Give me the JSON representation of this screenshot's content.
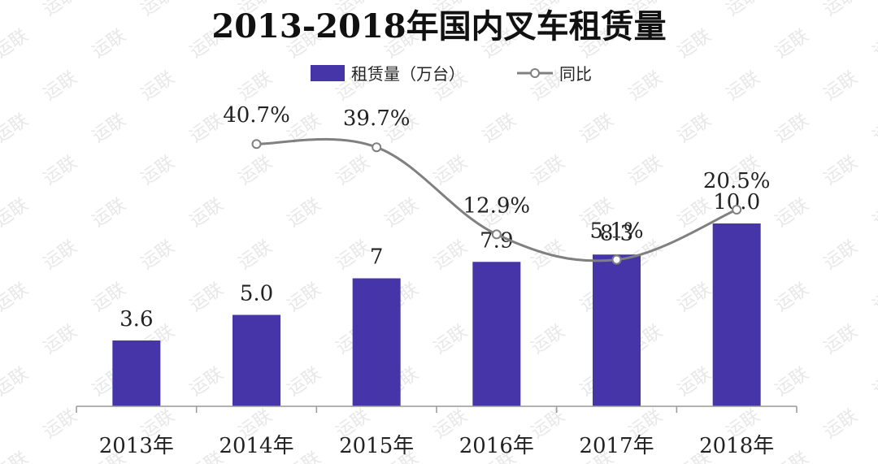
{
  "chart_data": {
    "type": "bar",
    "title": "2013-2018年国内叉车租赁量",
    "categories": [
      "2013年",
      "2014年",
      "2015年",
      "2016年",
      "2017年",
      "2018年"
    ],
    "series": [
      {
        "name": "租赁量（万台）",
        "type": "bar",
        "values": [
          3.6,
          5.0,
          7,
          7.9,
          8.3,
          10.0
        ],
        "labels": [
          "3.6",
          "5.0",
          "7",
          "7.9",
          "8.3",
          "10.0"
        ],
        "color": "#4535a8"
      },
      {
        "name": "同比",
        "type": "line",
        "values": [
          null,
          40.7,
          39.7,
          12.9,
          5.1,
          20.5
        ],
        "labels": [
          "",
          "40.7%",
          "39.7%",
          "12.9%",
          "5.1%",
          "20.5%"
        ],
        "color": "#808080"
      }
    ],
    "bar_ylim": [
      0,
      16
    ],
    "line_ylim": [
      -40,
      50
    ],
    "grid": false,
    "legend": "top-center"
  },
  "watermark": "运联"
}
